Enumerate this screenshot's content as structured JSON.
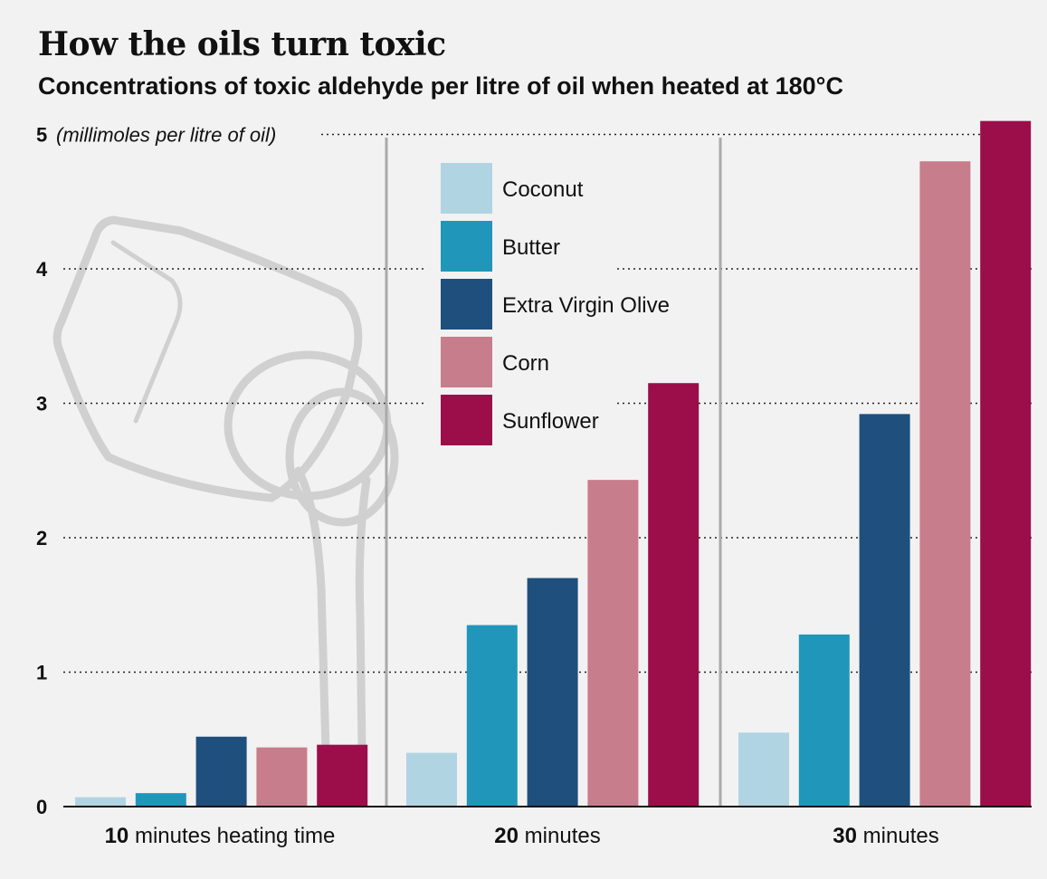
{
  "title": "How the oils turn toxic",
  "subtitle": "Concentrations of toxic aldehyde per litre of oil when heated at 180°C",
  "colors": {
    "background": "#f2f2f2",
    "Coconut": "#b0d4e2",
    "Butter": "#2196bb",
    "Extra Virgin Olive": "#1e4f7d",
    "Corn": "#c77d8c",
    "Sunflower": "#9b0e4a",
    "illustration": "#d0d0d0",
    "divider": "#aaaaaa"
  },
  "illustration": "oil-bottle-pouring-icon",
  "chart_data": {
    "type": "bar",
    "title": "How the oils turn toxic",
    "subtitle": "Concentrations of toxic aldehyde per litre of oil when heated at 180°C",
    "ylabel": "(millimoles per litre of oil)",
    "ylim": [
      0,
      5
    ],
    "yticks": [
      0,
      1,
      2,
      3,
      4,
      5
    ],
    "grid": "dotted horizontal",
    "legend": "top-center",
    "categories": [
      {
        "bold": "10",
        "rest": " minutes heating time"
      },
      {
        "bold": "20",
        "rest": " minutes"
      },
      {
        "bold": "30",
        "rest": " minutes"
      }
    ],
    "series": [
      {
        "name": "Coconut",
        "values": [
          0.07,
          0.4,
          0.55
        ]
      },
      {
        "name": "Butter",
        "values": [
          0.1,
          1.35,
          1.28
        ]
      },
      {
        "name": "Extra Virgin Olive",
        "values": [
          0.52,
          1.7,
          2.92
        ]
      },
      {
        "name": "Corn",
        "values": [
          0.44,
          2.43,
          4.8
        ]
      },
      {
        "name": "Sunflower",
        "values": [
          0.46,
          3.15,
          5.1
        ]
      }
    ]
  }
}
